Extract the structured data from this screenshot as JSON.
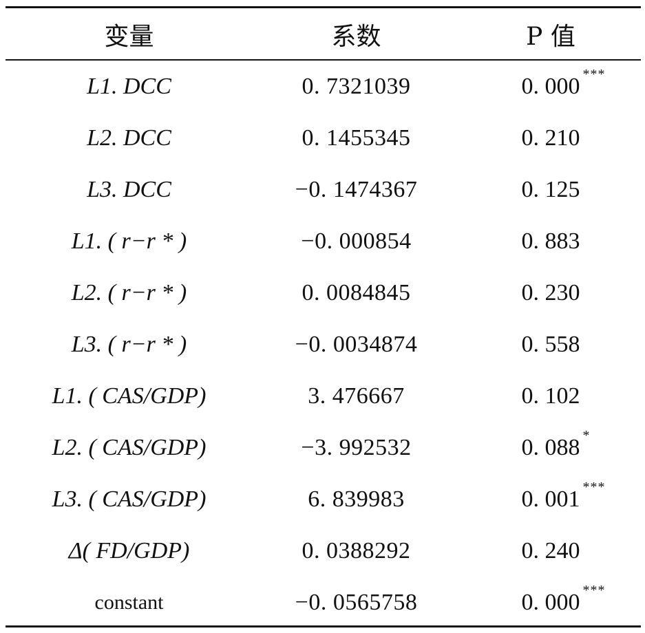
{
  "table": {
    "headers": {
      "variable": "变量",
      "coefficient": "系数",
      "p_value": "P 值"
    },
    "rows": [
      {
        "variable": "L1. DCC",
        "coefficient": "0. 7321039",
        "p": "0. 000",
        "stars": "***",
        "italic": true
      },
      {
        "variable": "L2. DCC",
        "coefficient": "0. 1455345",
        "p": "0. 210",
        "stars": "",
        "italic": true
      },
      {
        "variable": "L3. DCC",
        "coefficient": "−0. 1474367",
        "p": "0. 125",
        "stars": "",
        "italic": true
      },
      {
        "variable": "L1. ( r−r * )",
        "coefficient": "−0. 000854",
        "p": "0. 883",
        "stars": "",
        "italic": true
      },
      {
        "variable": "L2. ( r−r * )",
        "coefficient": "0. 0084845",
        "p": "0. 230",
        "stars": "",
        "italic": true
      },
      {
        "variable": "L3. ( r−r * )",
        "coefficient": "−0. 0034874",
        "p": "0. 558",
        "stars": "",
        "italic": true
      },
      {
        "variable": "L1. ( CAS/GDP)",
        "coefficient": "3. 476667",
        "p": "0. 102",
        "stars": "",
        "italic": true
      },
      {
        "variable": "L2. ( CAS/GDP)",
        "coefficient": "−3. 992532",
        "p": "0. 088",
        "stars": "*",
        "italic": true
      },
      {
        "variable": "L3. ( CAS/GDP)",
        "coefficient": "6. 839983",
        "p": "0. 001",
        "stars": "***",
        "italic": true
      },
      {
        "variable": "Δ( FD/GDP)",
        "coefficient": "0. 0388292",
        "p": "0. 240",
        "stars": "",
        "italic": true
      },
      {
        "variable": "constant",
        "coefficient": "−0. 0565758",
        "p": "0. 000",
        "stars": "***",
        "italic": false
      }
    ]
  }
}
